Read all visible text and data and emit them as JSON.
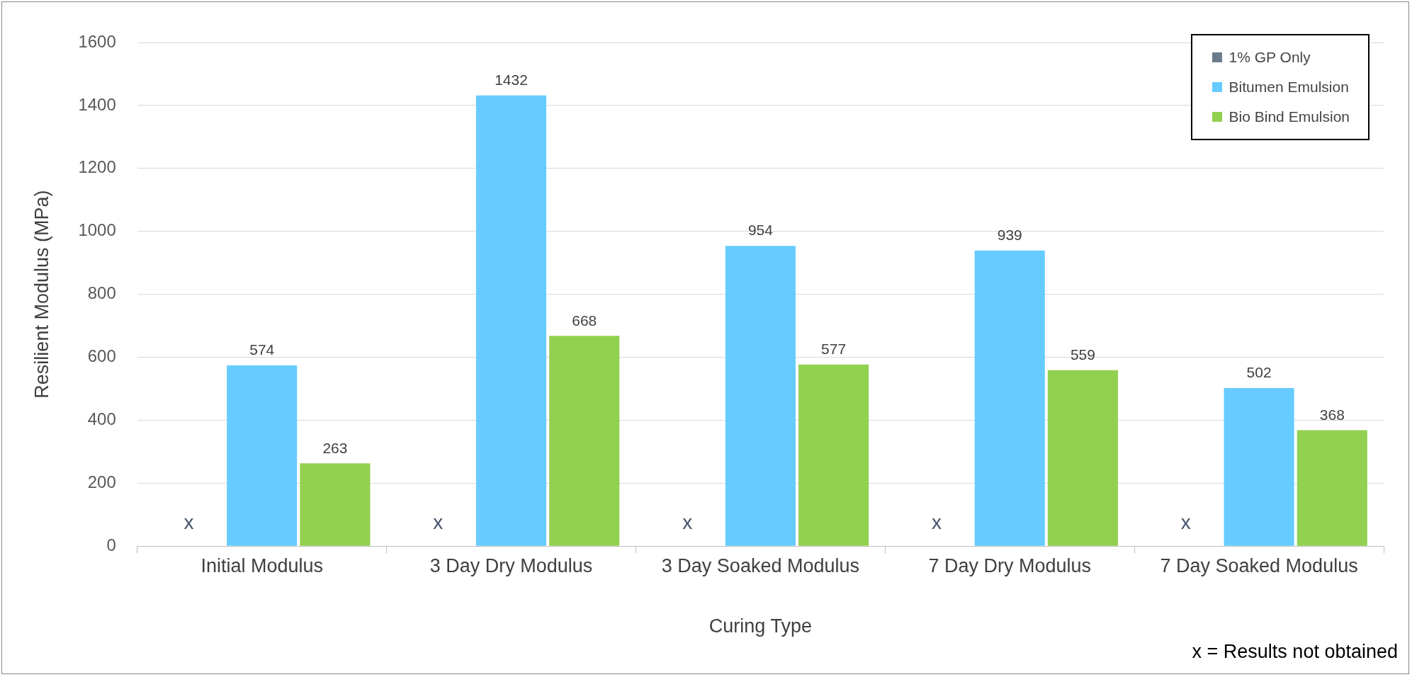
{
  "chart_data": {
    "type": "bar",
    "xlabel": "Curing Type",
    "ylabel": "Resilient Modulus (MPa)",
    "categories": [
      "Initial Modulus",
      "3 Day Dry Modulus",
      "3 Day Soaked Modulus",
      "7 Day Dry Modulus",
      "7 Day Soaked Modulus"
    ],
    "series": [
      {
        "name": "1% GP Only",
        "color": "#6b7b8c",
        "values": [
          null,
          null,
          null,
          null,
          null
        ],
        "value_labels": [
          "x",
          "x",
          "x",
          "x",
          "x"
        ]
      },
      {
        "name": "Bitumen Emulsion",
        "color": "#66ccff",
        "values": [
          574,
          1432,
          954,
          939,
          502
        ]
      },
      {
        "name": "Bio Bind Emulsion",
        "color": "#92d050",
        "values": [
          263,
          668,
          577,
          559,
          368
        ]
      }
    ],
    "ylim": [
      0,
      1600
    ],
    "yticks": [
      0,
      200,
      400,
      600,
      800,
      1000,
      1200,
      1400,
      1600
    ],
    "grid": "y",
    "legend": "top right",
    "data_labels": true,
    "annotations": [
      "x = Results not obtained"
    ]
  }
}
